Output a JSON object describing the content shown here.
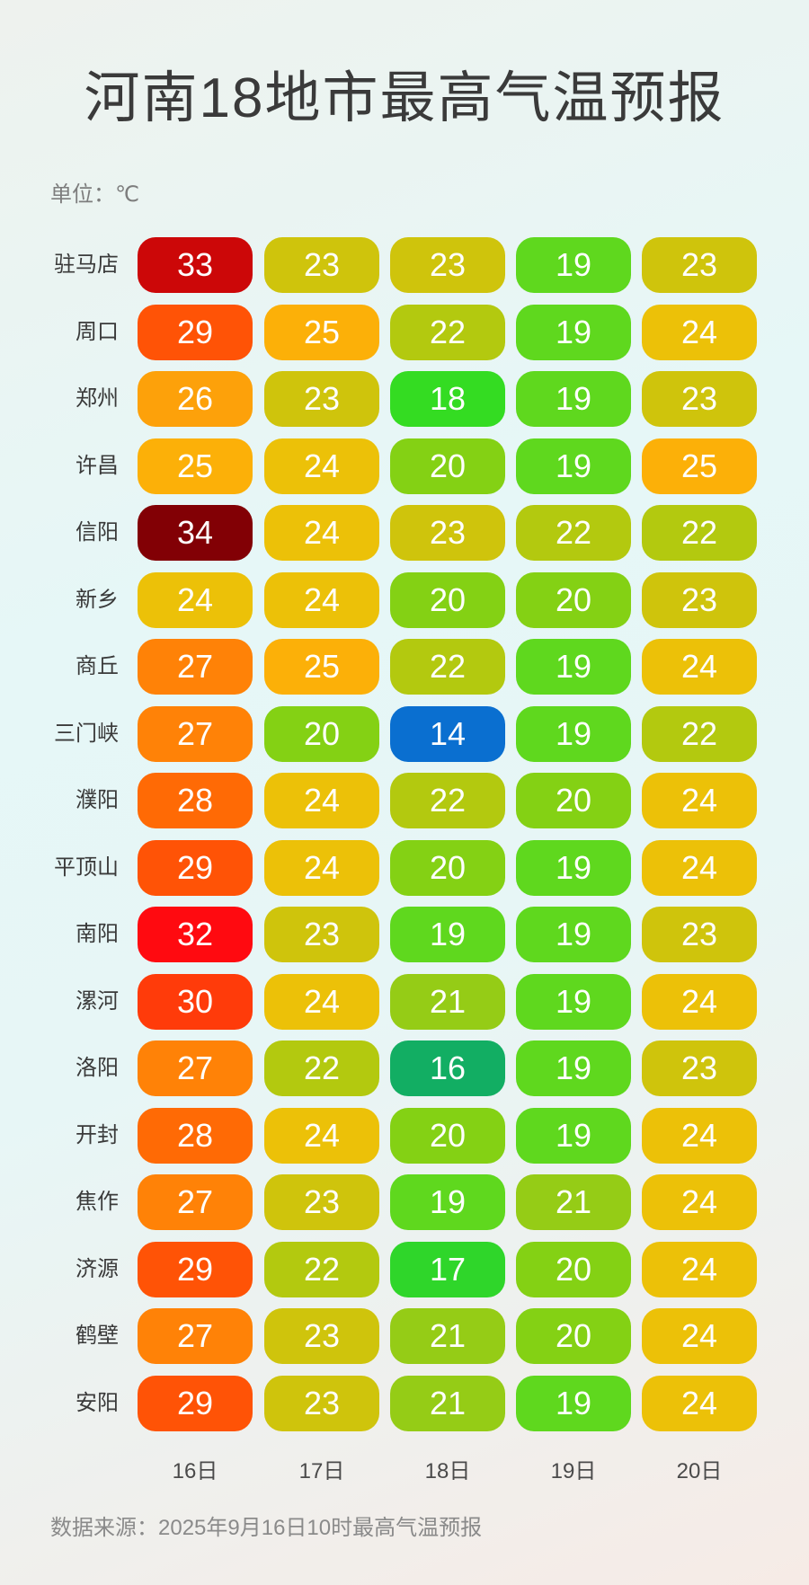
{
  "title": "河南18地市最高气温预报",
  "unit_label": "单位：℃",
  "source": "数据来源：2025年9月16日10时最高气温预报",
  "chart_data": {
    "type": "table",
    "title": "河南18地市最高气温预报",
    "unit": "℃",
    "columns": [
      "16日",
      "17日",
      "18日",
      "19日",
      "20日"
    ],
    "rows": [
      {
        "city": "驻马店",
        "values": [
          33,
          23,
          23,
          19,
          23
        ]
      },
      {
        "city": "周口",
        "values": [
          29,
          25,
          22,
          19,
          24
        ]
      },
      {
        "city": "郑州",
        "values": [
          26,
          23,
          18,
          19,
          23
        ]
      },
      {
        "city": "许昌",
        "values": [
          25,
          24,
          20,
          19,
          25
        ]
      },
      {
        "city": "信阳",
        "values": [
          34,
          24,
          23,
          22,
          22
        ]
      },
      {
        "city": "新乡",
        "values": [
          24,
          24,
          20,
          20,
          23
        ]
      },
      {
        "city": "商丘",
        "values": [
          27,
          25,
          22,
          19,
          24
        ]
      },
      {
        "city": "三门峡",
        "values": [
          27,
          20,
          14,
          19,
          22
        ]
      },
      {
        "city": "濮阳",
        "values": [
          28,
          24,
          22,
          20,
          24
        ]
      },
      {
        "city": "平顶山",
        "values": [
          29,
          24,
          20,
          19,
          24
        ]
      },
      {
        "city": "南阳",
        "values": [
          32,
          23,
          19,
          19,
          23
        ]
      },
      {
        "city": "漯河",
        "values": [
          30,
          24,
          21,
          19,
          24
        ]
      },
      {
        "city": "洛阳",
        "values": [
          27,
          22,
          16,
          19,
          23
        ]
      },
      {
        "city": "开封",
        "values": [
          28,
          24,
          20,
          19,
          24
        ]
      },
      {
        "city": "焦作",
        "values": [
          27,
          23,
          19,
          21,
          24
        ]
      },
      {
        "city": "济源",
        "values": [
          29,
          22,
          17,
          20,
          24
        ]
      },
      {
        "city": "鹤壁",
        "values": [
          27,
          23,
          21,
          20,
          24
        ]
      },
      {
        "city": "安阳",
        "values": [
          29,
          23,
          21,
          19,
          24
        ]
      }
    ],
    "color_scale": {
      "14": "#0a6fd0",
      "16": "#12ae63",
      "17": "#2fd62a",
      "18": "#34dc22",
      "19": "#5fd81e",
      "20": "#84d114",
      "21": "#95cc16",
      "22": "#b3c90f",
      "23": "#cfc40c",
      "24": "#ecc108",
      "25": "#fcb008",
      "26": "#fda10a",
      "27": "#ff8207",
      "28": "#ff6a05",
      "29": "#ff5306",
      "30": "#ff3b0a",
      "32": "#ff0a10",
      "33": "#cc0708",
      "34": "#820005"
    }
  }
}
